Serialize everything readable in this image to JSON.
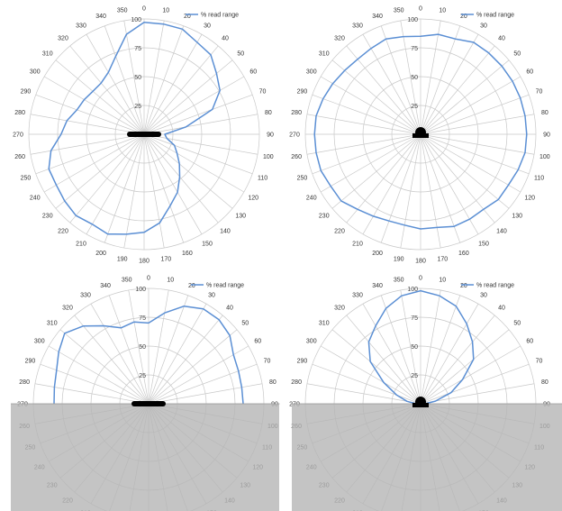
{
  "chart_data": [
    {
      "type": "polar-line",
      "legend": "% read range",
      "legend_position": "top-right",
      "angle_labels": [
        "0",
        "10",
        "20",
        "30",
        "40",
        "50",
        "60",
        "70",
        "80",
        "90",
        "100",
        "110",
        "120",
        "130",
        "140",
        "150",
        "160",
        "170",
        "180",
        "190",
        "200",
        "210",
        "220",
        "230",
        "240",
        "250",
        "260",
        "270",
        "280",
        "290",
        "300",
        "310",
        "320",
        "330",
        "340",
        "350"
      ],
      "radial_labels": [
        "25",
        "50",
        "75",
        "100"
      ],
      "rlim": [
        0,
        100
      ],
      "visible_range": [
        0,
        360
      ],
      "series": [
        {
          "theta": [
            0,
            10,
            20,
            30,
            40,
            50,
            60,
            70,
            80,
            90,
            100,
            110,
            120,
            130,
            140,
            150,
            160,
            170,
            180,
            190,
            200,
            210,
            220,
            230,
            240,
            250,
            260,
            270,
            280,
            290,
            300,
            310,
            320,
            330,
            340,
            350
          ],
          "r": [
            97,
            97,
            97,
            92,
            90,
            82,
            76,
            63,
            37,
            18,
            20,
            28,
            33,
            40,
            48,
            58,
            66,
            78,
            85,
            88,
            92,
            90,
            92,
            90,
            88,
            88,
            82,
            72,
            68,
            62,
            60,
            58,
            58,
            62,
            72,
            88
          ]
        }
      ]
    },
    {
      "type": "polar-line",
      "legend": "% read range",
      "legend_position": "top-right",
      "angle_labels": [
        "0",
        "10",
        "20",
        "30",
        "40",
        "50",
        "60",
        "70",
        "80",
        "90",
        "100",
        "110",
        "120",
        "130",
        "140",
        "150",
        "160",
        "170",
        "180",
        "190",
        "200",
        "210",
        "220",
        "230",
        "240",
        "250",
        "260",
        "270",
        "280",
        "290",
        "300",
        "310",
        "320",
        "330",
        "340",
        "350"
      ],
      "radial_labels": [
        "25",
        "50",
        "75",
        "100"
      ],
      "rlim": [
        0,
        100
      ],
      "visible_range": [
        0,
        360
      ],
      "series": [
        {
          "theta": [
            0,
            10,
            20,
            30,
            40,
            50,
            60,
            70,
            80,
            90,
            100,
            110,
            120,
            130,
            140,
            150,
            160,
            170,
            180,
            190,
            200,
            210,
            220,
            230,
            240,
            250,
            260,
            270,
            280,
            290,
            300,
            310,
            320,
            330,
            340,
            350
          ],
          "r": [
            85,
            88,
            88,
            92,
            92,
            92,
            92,
            92,
            92,
            92,
            92,
            90,
            88,
            88,
            85,
            85,
            85,
            82,
            82,
            80,
            80,
            82,
            85,
            90,
            90,
            92,
            92,
            92,
            92,
            90,
            88,
            86,
            85,
            86,
            88,
            86
          ]
        }
      ]
    },
    {
      "type": "polar-line",
      "legend": "% read range",
      "legend_position": "top-right",
      "angle_labels": [
        "0",
        "10",
        "20",
        "30",
        "40",
        "50",
        "60",
        "70",
        "80",
        "90",
        "100",
        "110",
        "120",
        "130",
        "140",
        "150",
        "160",
        "170",
        "180",
        "190",
        "200",
        "210",
        "220",
        "230",
        "240",
        "250",
        "260",
        "270",
        "280",
        "290",
        "300",
        "310",
        "320",
        "330",
        "340",
        "350"
      ],
      "radial_labels": [
        "25",
        "50",
        "75",
        "100"
      ],
      "rlim": [
        0,
        100
      ],
      "visible_range": [
        270,
        90
      ],
      "series": [
        {
          "theta": [
            270,
            280,
            290,
            300,
            310,
            320,
            330,
            340,
            350,
            0,
            10,
            20,
            30,
            40,
            50,
            60,
            70,
            80,
            90
          ],
          "r": [
            82,
            83,
            85,
            90,
            95,
            88,
            78,
            70,
            72,
            70,
            80,
            90,
            95,
            95,
            92,
            85,
            83,
            82,
            82
          ]
        }
      ]
    },
    {
      "type": "polar-line",
      "legend": "% read range",
      "legend_position": "top-right",
      "angle_labels": [
        "0",
        "10",
        "20",
        "30",
        "40",
        "50",
        "60",
        "70",
        "80",
        "90",
        "100",
        "110",
        "120",
        "130",
        "140",
        "150",
        "160",
        "170",
        "180",
        "190",
        "200",
        "210",
        "220",
        "230",
        "240",
        "250",
        "260",
        "270",
        "280",
        "290",
        "300",
        "310",
        "320",
        "330",
        "340",
        "350"
      ],
      "radial_labels": [
        "25",
        "50",
        "75",
        "100"
      ],
      "rlim": [
        0,
        100
      ],
      "visible_range": [
        270,
        90
      ],
      "series": [
        {
          "theta": [
            270,
            280,
            290,
            300,
            310,
            320,
            330,
            340,
            350,
            0,
            10,
            20,
            30,
            40,
            50,
            60,
            70,
            80,
            90
          ],
          "r": [
            4,
            12,
            22,
            37,
            57,
            70,
            78,
            88,
            95,
            98,
            95,
            90,
            80,
            70,
            60,
            42,
            28,
            13,
            4
          ]
        }
      ]
    }
  ]
}
